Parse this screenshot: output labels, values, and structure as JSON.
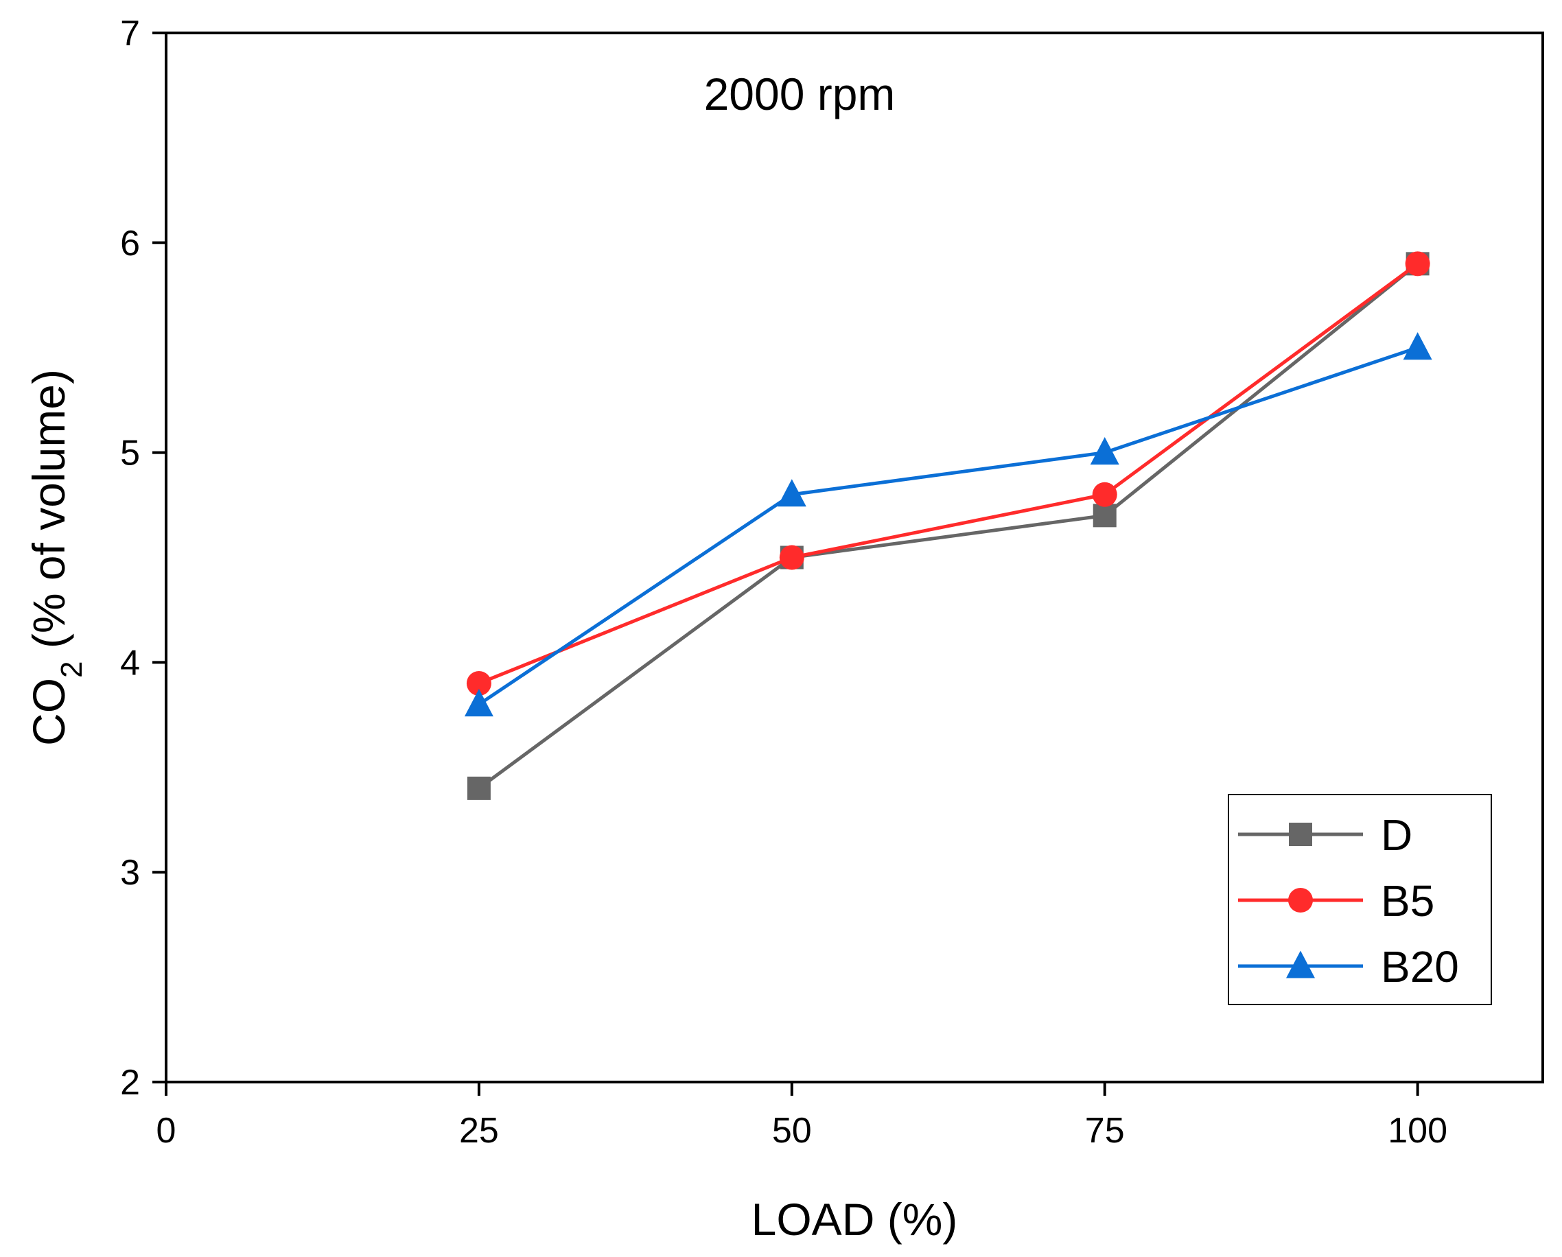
{
  "chart_data": {
    "type": "line",
    "annotation": "2000 rpm",
    "xlabel": "LOAD (%)",
    "ylabel": {
      "main": "CO",
      "sub": "2",
      "rest": " (% of volume)"
    },
    "xlim": [
      0,
      110
    ],
    "ylim": [
      2,
      7
    ],
    "xticks": [
      "0",
      "25",
      "50",
      "75",
      "100"
    ],
    "yticks": [
      "2",
      "3",
      "4",
      "5",
      "6",
      "7"
    ],
    "x": [
      25,
      50,
      75,
      100
    ],
    "legend_position": "bottom-right",
    "series": [
      {
        "name": "D",
        "marker": "square",
        "color": "#666666",
        "values": [
          3.4,
          4.5,
          4.7,
          5.9
        ]
      },
      {
        "name": "B5",
        "marker": "circle",
        "color": "#ff2b2b",
        "values": [
          3.9,
          4.5,
          4.8,
          5.9
        ]
      },
      {
        "name": "B20",
        "marker": "triangle",
        "color": "#0b6fd6",
        "values": [
          3.8,
          4.8,
          5.0,
          5.5
        ]
      }
    ]
  }
}
